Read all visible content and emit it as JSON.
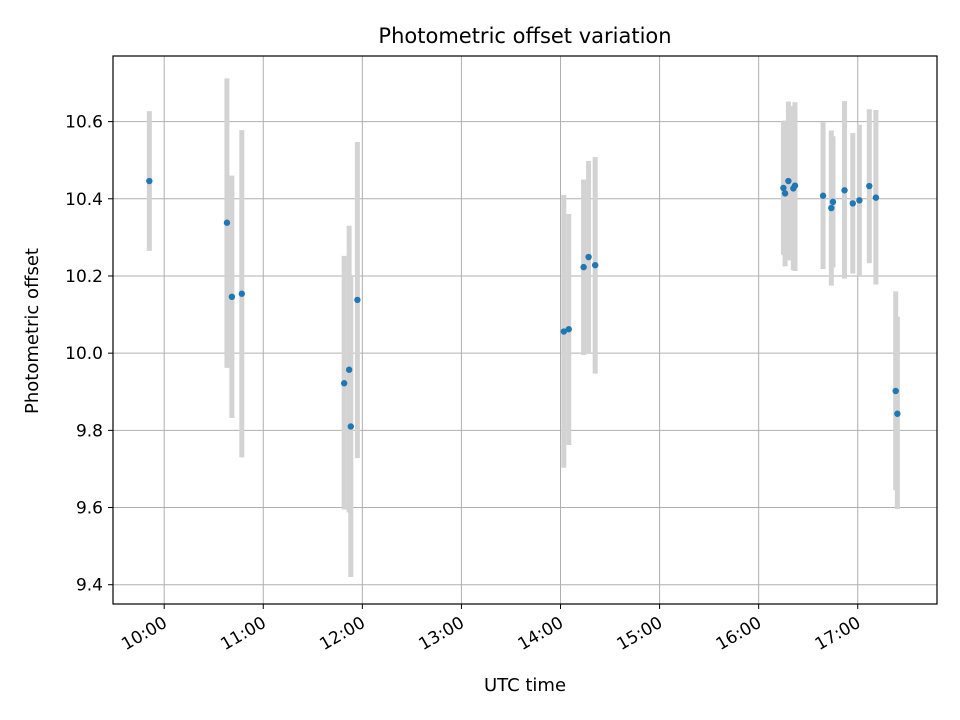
{
  "chart_data": {
    "type": "scatter",
    "title": "Photometric offset variation",
    "xlabel": "UTC time",
    "ylabel": "Photometric offset",
    "x_unit": "UTC time of day",
    "xlim": [
      "09:29",
      "17:48"
    ],
    "ylim": [
      9.35,
      10.77
    ],
    "x_ticks": [
      "10:00",
      "11:00",
      "12:00",
      "13:00",
      "14:00",
      "15:00",
      "16:00",
      "17:00"
    ],
    "y_ticks": [
      9.4,
      9.6,
      9.8,
      10.0,
      10.2,
      10.4,
      10.6
    ],
    "y_tick_labels": [
      "9.4",
      "9.6",
      "9.8",
      "10.0",
      "10.2",
      "10.4",
      "10.6"
    ],
    "grid": true,
    "colors": {
      "marker": "#1f77b4",
      "errorbar": "#d3d3d3",
      "grid": "#b0b0b0",
      "axes": "#000000"
    },
    "series": [
      {
        "points": [
          {
            "x": "09:51",
            "y": 10.446,
            "ylo": 10.265,
            "yhi": 10.627
          },
          {
            "x": "10:38",
            "y": 10.338,
            "ylo": 9.962,
            "yhi": 10.712
          },
          {
            "x": "10:41",
            "y": 10.146,
            "ylo": 9.832,
            "yhi": 10.46
          },
          {
            "x": "10:47",
            "y": 10.154,
            "ylo": 9.73,
            "yhi": 10.578
          },
          {
            "x": "11:49",
            "y": 9.922,
            "ylo": 9.595,
            "yhi": 10.252
          },
          {
            "x": "11:52",
            "y": 9.957,
            "ylo": 9.587,
            "yhi": 10.33
          },
          {
            "x": "11:53",
            "y": 9.81,
            "ylo": 9.42,
            "yhi": 10.2
          },
          {
            "x": "11:57",
            "y": 10.138,
            "ylo": 9.728,
            "yhi": 10.547
          },
          {
            "x": "14:02",
            "y": 10.056,
            "ylo": 9.703,
            "yhi": 10.41
          },
          {
            "x": "14:05",
            "y": 10.062,
            "ylo": 9.762,
            "yhi": 10.361
          },
          {
            "x": "14:14",
            "y": 10.223,
            "ylo": 9.995,
            "yhi": 10.45
          },
          {
            "x": "14:17",
            "y": 10.249,
            "ylo": 9.998,
            "yhi": 10.498
          },
          {
            "x": "14:21",
            "y": 10.228,
            "ylo": 9.947,
            "yhi": 10.508
          },
          {
            "x": "16:15",
            "y": 10.428,
            "ylo": 10.255,
            "yhi": 10.6
          },
          {
            "x": "16:16",
            "y": 10.414,
            "ylo": 10.225,
            "yhi": 10.603
          },
          {
            "x": "16:18",
            "y": 10.446,
            "ylo": 10.24,
            "yhi": 10.652
          },
          {
            "x": "16:21",
            "y": 10.427,
            "ylo": 10.215,
            "yhi": 10.64
          },
          {
            "x": "16:22",
            "y": 10.434,
            "ylo": 10.213,
            "yhi": 10.65
          },
          {
            "x": "16:39",
            "y": 10.408,
            "ylo": 10.218,
            "yhi": 10.598
          },
          {
            "x": "16:44",
            "y": 10.376,
            "ylo": 10.175,
            "yhi": 10.577
          },
          {
            "x": "16:45",
            "y": 10.392,
            "ylo": 10.222,
            "yhi": 10.562
          },
          {
            "x": "16:52",
            "y": 10.422,
            "ylo": 10.193,
            "yhi": 10.653
          },
          {
            "x": "16:57",
            "y": 10.388,
            "ylo": 10.206,
            "yhi": 10.57
          },
          {
            "x": "17:01",
            "y": 10.396,
            "ylo": 10.2,
            "yhi": 10.592
          },
          {
            "x": "17:07",
            "y": 10.433,
            "ylo": 10.233,
            "yhi": 10.632
          },
          {
            "x": "17:11",
            "y": 10.403,
            "ylo": 10.178,
            "yhi": 10.63
          },
          {
            "x": "17:23",
            "y": 9.902,
            "ylo": 9.645,
            "yhi": 10.16
          },
          {
            "x": "17:24",
            "y": 9.843,
            "ylo": 9.596,
            "yhi": 10.094
          }
        ]
      }
    ]
  }
}
